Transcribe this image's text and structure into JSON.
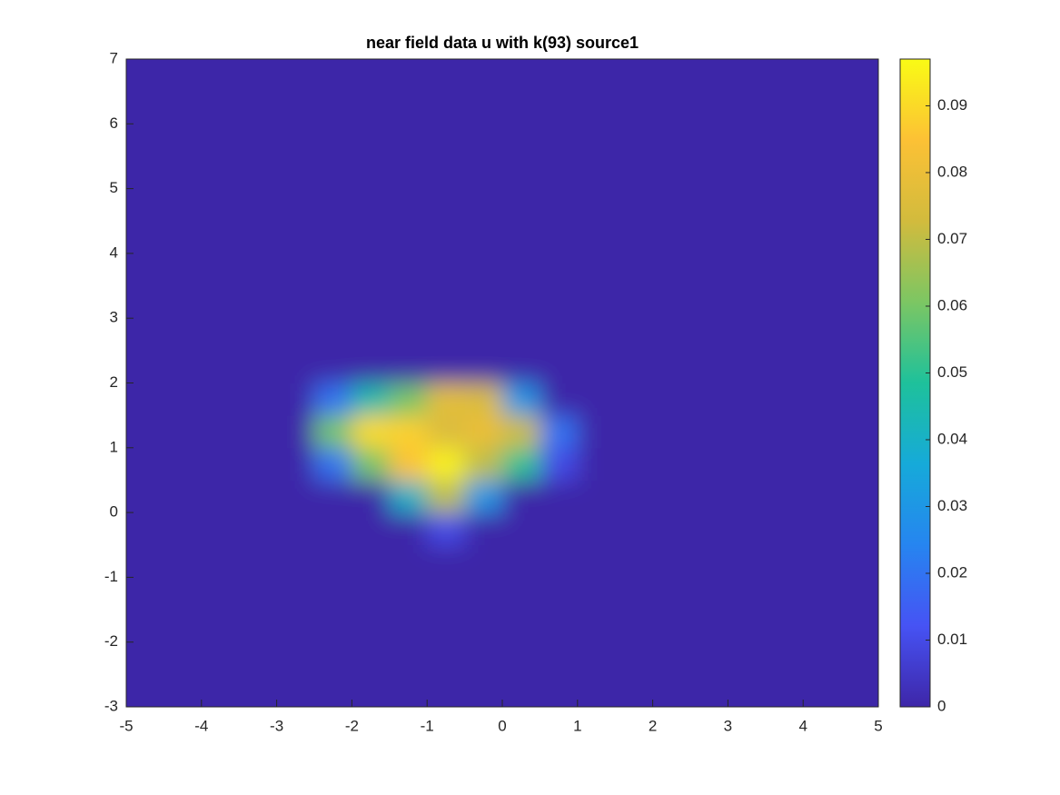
{
  "chart_data": {
    "type": "heatmap",
    "title": "near field data u with k(93) source1",
    "xlim": [
      -5,
      5
    ],
    "ylim": [
      -3,
      7
    ],
    "xticks": [
      -5,
      -4,
      -3,
      -2,
      -1,
      0,
      1,
      2,
      3,
      4,
      5
    ],
    "yticks": [
      -3,
      -2,
      -1,
      0,
      1,
      2,
      3,
      4,
      5,
      6,
      7
    ],
    "clim": [
      0,
      0.097
    ],
    "cticks": [
      0,
      0.01,
      0.02,
      0.03,
      0.04,
      0.05,
      0.06,
      0.07,
      0.08,
      0.09
    ],
    "colormap": [
      "#3e26a8",
      "#4653f4",
      "#2685f0",
      "#16aad9",
      "#1ec19b",
      "#7cc663",
      "#d2bb3d",
      "#fcc135",
      "#f9fb15"
    ],
    "x": [
      -4.75,
      -4.25,
      -3.75,
      -3.25,
      -2.75,
      -2.25,
      -1.75,
      -1.25,
      -0.75,
      -0.25,
      0.25,
      0.75,
      1.25,
      1.75,
      2.25,
      2.75,
      3.25,
      3.75,
      4.25,
      4.75
    ],
    "y": [
      -2.75,
      -2.25,
      -1.75,
      -1.25,
      -0.75,
      -0.25,
      0.25,
      0.75,
      1.25,
      1.75,
      2.25,
      2.75,
      3.25,
      3.75,
      4.25,
      4.75,
      5.25,
      5.75,
      6.25,
      6.75
    ],
    "z": [
      [
        0,
        0,
        0,
        0,
        0,
        0,
        0,
        0,
        0,
        0,
        0,
        0,
        0,
        0,
        0,
        0,
        0,
        0,
        0,
        0
      ],
      [
        0,
        0,
        0,
        0,
        0,
        0,
        0,
        0,
        0,
        0,
        0,
        0,
        0,
        0,
        0,
        0,
        0,
        0,
        0,
        0
      ],
      [
        0,
        0,
        0,
        0,
        0,
        0,
        0,
        0,
        0,
        0,
        0,
        0,
        0,
        0,
        0,
        0,
        0,
        0,
        0,
        0
      ],
      [
        0,
        0,
        0,
        0,
        0,
        0,
        0,
        0,
        0,
        0,
        0,
        0,
        0,
        0,
        0,
        0,
        0,
        0,
        0,
        0
      ],
      [
        0,
        0,
        0,
        0,
        0,
        0,
        0,
        0,
        0,
        0,
        0,
        0,
        0,
        0,
        0,
        0,
        0,
        0,
        0,
        0
      ],
      [
        0,
        0,
        0,
        0,
        0,
        0,
        0,
        0,
        0.01,
        0,
        0,
        0,
        0,
        0,
        0,
        0,
        0,
        0,
        0,
        0
      ],
      [
        0,
        0,
        0,
        0,
        0,
        0,
        0,
        0.04,
        0.07,
        0.03,
        0,
        0,
        0,
        0,
        0,
        0,
        0,
        0,
        0,
        0
      ],
      [
        0,
        0,
        0,
        0,
        0,
        0.02,
        0.06,
        0.085,
        0.095,
        0.07,
        0.05,
        0.01,
        0,
        0,
        0,
        0,
        0,
        0,
        0,
        0
      ],
      [
        0,
        0,
        0,
        0,
        0,
        0.06,
        0.09,
        0.088,
        0.075,
        0.08,
        0.072,
        0.02,
        0,
        0,
        0,
        0,
        0,
        0,
        0,
        0
      ],
      [
        0,
        0,
        0,
        0,
        0,
        0.02,
        0.045,
        0.06,
        0.078,
        0.075,
        0.03,
        0,
        0,
        0,
        0,
        0,
        0,
        0,
        0,
        0
      ],
      [
        0,
        0,
        0,
        0,
        0,
        0,
        0,
        0,
        0,
        0,
        0,
        0,
        0,
        0,
        0,
        0,
        0,
        0,
        0,
        0
      ],
      [
        0,
        0,
        0,
        0,
        0,
        0,
        0,
        0,
        0,
        0,
        0,
        0,
        0,
        0,
        0,
        0,
        0,
        0,
        0,
        0
      ],
      [
        0,
        0,
        0,
        0,
        0,
        0,
        0,
        0,
        0,
        0,
        0,
        0,
        0,
        0,
        0,
        0,
        0,
        0,
        0,
        0
      ],
      [
        0,
        0,
        0,
        0,
        0,
        0,
        0,
        0,
        0,
        0,
        0,
        0,
        0,
        0,
        0,
        0,
        0,
        0,
        0,
        0
      ],
      [
        0,
        0,
        0,
        0,
        0,
        0,
        0,
        0,
        0,
        0,
        0,
        0,
        0,
        0,
        0,
        0,
        0,
        0,
        0,
        0
      ],
      [
        0,
        0,
        0,
        0,
        0,
        0,
        0,
        0,
        0,
        0,
        0,
        0,
        0,
        0,
        0,
        0,
        0,
        0,
        0,
        0
      ],
      [
        0,
        0,
        0,
        0,
        0,
        0,
        0,
        0,
        0,
        0,
        0,
        0,
        0,
        0,
        0,
        0,
        0,
        0,
        0,
        0
      ],
      [
        0,
        0,
        0,
        0,
        0,
        0,
        0,
        0,
        0,
        0,
        0,
        0,
        0,
        0,
        0,
        0,
        0,
        0,
        0,
        0
      ],
      [
        0,
        0,
        0,
        0,
        0,
        0,
        0,
        0,
        0,
        0,
        0,
        0,
        0,
        0,
        0,
        0,
        0,
        0,
        0,
        0
      ],
      [
        0,
        0,
        0,
        0,
        0,
        0,
        0,
        0,
        0,
        0,
        0,
        0,
        0,
        0,
        0,
        0,
        0,
        0,
        0,
        0
      ]
    ]
  }
}
